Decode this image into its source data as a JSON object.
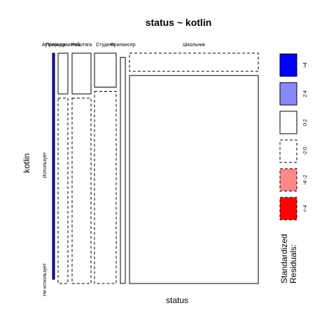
{
  "chart_data": {
    "type": "mosaic",
    "title": "status ~ kotlin",
    "xlabel": "status",
    "ylabel": "kotlin",
    "x_categories": [
      "Аутсорсер",
      "Преподаватель",
      "Работяга",
      "Студент",
      "Фрилансер",
      "Школьник"
    ],
    "y_categories": [
      "Использует",
      "Не использует"
    ],
    "cells": [
      {
        "status": "Аутсорсер",
        "kotlin": "Использует",
        "share": 1.0,
        "residual_class": ">4"
      },
      {
        "status": "Аутсорсер",
        "kotlin": "Не использует",
        "share": 0.0,
        "residual_class": "0:2"
      },
      {
        "status": "Преподаватель",
        "kotlin": "Использует",
        "share": 0.18,
        "residual_class": "0:2"
      },
      {
        "status": "Преподаватель",
        "kotlin": "Не использует",
        "share": 0.82,
        "residual_class": "-2:0"
      },
      {
        "status": "Работяга",
        "kotlin": "Использует",
        "share": 0.18,
        "residual_class": "0:2"
      },
      {
        "status": "Работяга",
        "kotlin": "Не использует",
        "share": 0.82,
        "residual_class": "-2:0"
      },
      {
        "status": "Студент",
        "kotlin": "Использует",
        "share": 0.15,
        "residual_class": "0:2"
      },
      {
        "status": "Студент",
        "kotlin": "Не использует",
        "share": 0.85,
        "residual_class": "-2:0"
      },
      {
        "status": "Фрилансер",
        "kotlin": "Использует",
        "share": 0.0,
        "residual_class": "0:2"
      },
      {
        "status": "Фрилансер",
        "kotlin": "Не использует",
        "share": 1.0,
        "residual_class": "0:2"
      },
      {
        "status": "Школьник",
        "kotlin": "Использует",
        "share": 0.08,
        "residual_class": "-2:0"
      },
      {
        "status": "Школьник",
        "kotlin": "Не использует",
        "share": 0.92,
        "residual_class": "0:2"
      }
    ],
    "legend": {
      "title_lines": [
        "Standardized",
        "Residuals:"
      ],
      "placement": "right",
      "entries": [
        {
          "label": ">4",
          "fill": "#0000ff",
          "dashed": false
        },
        {
          "label": "2:4",
          "fill": "#8888ff",
          "dashed": false
        },
        {
          "label": "0:2",
          "fill": "#ffffff",
          "dashed": false
        },
        {
          "label": "-2:0",
          "fill": "#ffffff",
          "dashed": true
        },
        {
          "label": "-4:-2",
          "fill": "#ff8888",
          "dashed": true
        },
        {
          "label": "<-4",
          "fill": "#ff0000",
          "dashed": true
        }
      ]
    }
  }
}
